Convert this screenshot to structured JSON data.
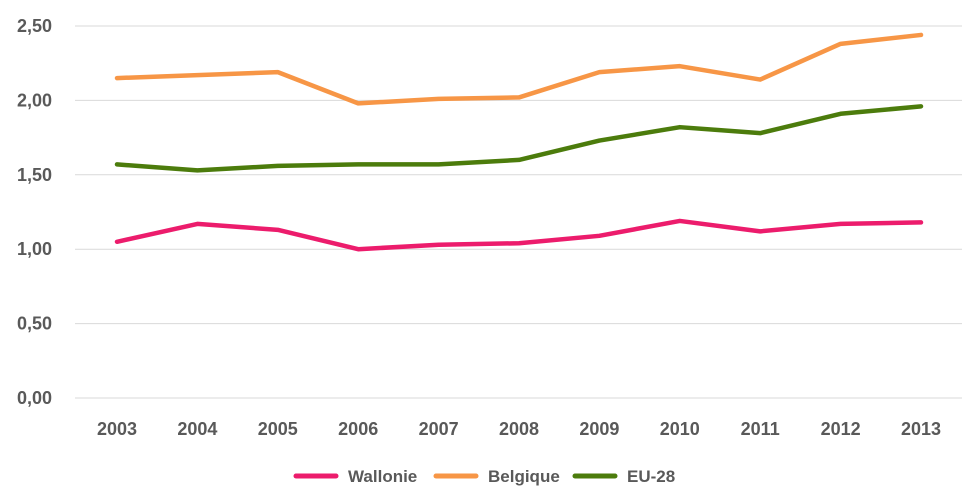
{
  "chart_data": {
    "type": "line",
    "title": "",
    "xlabel": "",
    "ylabel": "",
    "categories": [
      "2003",
      "2004",
      "2005",
      "2006",
      "2007",
      "2008",
      "2009",
      "2010",
      "2011",
      "2012",
      "2013"
    ],
    "ylim": [
      0,
      2.5
    ],
    "yticks": [
      "0,00",
      "0,50",
      "1,00",
      "1,50",
      "2,00",
      "2,50"
    ],
    "ytick_values": [
      0,
      0.5,
      1.0,
      1.5,
      2.0,
      2.5
    ],
    "grid": true,
    "legend_position": "bottom",
    "series": [
      {
        "name": "Wallonie",
        "color": "#ec1c6c",
        "values": [
          1.05,
          1.17,
          1.13,
          1.0,
          1.03,
          1.04,
          1.09,
          1.19,
          1.12,
          1.17,
          1.18
        ]
      },
      {
        "name": "Belgique",
        "color": "#f79646",
        "values": [
          2.15,
          2.17,
          2.19,
          1.98,
          2.01,
          2.02,
          2.19,
          2.23,
          2.14,
          2.38,
          2.44
        ]
      },
      {
        "name": "EU-28",
        "color": "#4c7c0c",
        "values": [
          1.57,
          1.53,
          1.56,
          1.57,
          1.57,
          1.6,
          1.73,
          1.82,
          1.78,
          1.91,
          1.96
        ]
      }
    ]
  }
}
